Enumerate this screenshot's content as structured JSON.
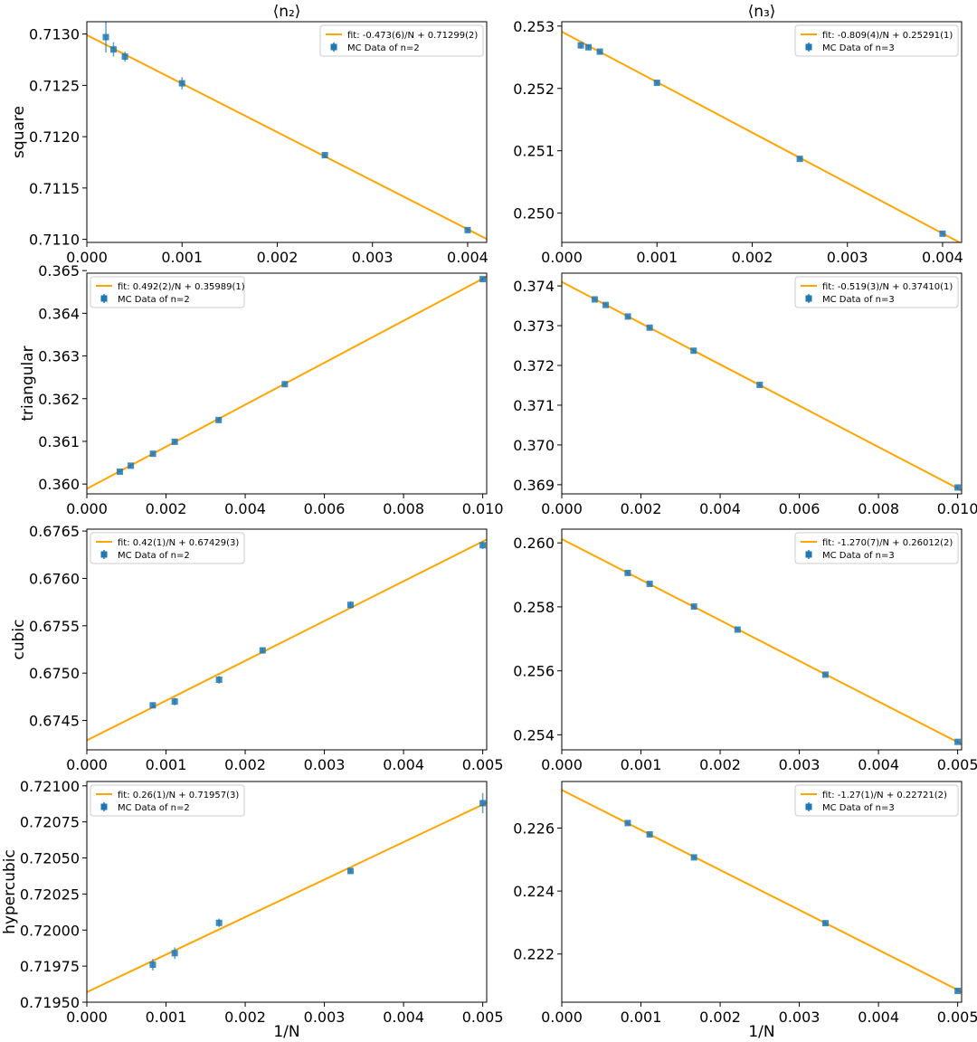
{
  "figure": {
    "column_titles": [
      "⟨n₂⟩",
      "⟨n₃⟩"
    ],
    "row_labels": [
      "square",
      "triangular",
      "cubic",
      "hypercubic"
    ],
    "xlabel": "1/N"
  },
  "chart_data": [
    {
      "type": "scatter",
      "row": "square",
      "column": "⟨n₂⟩",
      "xlim": [
        0,
        0.0042
      ],
      "ylim": [
        0.71097,
        0.71312
      ],
      "xticks": [
        "0.000",
        "0.001",
        "0.002",
        "0.003",
        "0.004"
      ],
      "yticks": [
        "0.7110",
        "0.7115",
        "0.7120",
        "0.7125",
        "0.7130"
      ],
      "legend": [
        "fit: -0.473(6)/N + 0.71299(2)",
        "MC Data of n=2"
      ],
      "legend_position": "upper right",
      "fit": {
        "slope": -0.473,
        "intercept": 0.71299
      },
      "series": [
        {
          "name": "MC Data of n=2",
          "x": [
            0.0002,
            0.00028,
            0.0004,
            0.001,
            0.0025,
            0.004
          ],
          "y": [
            0.71297,
            0.71285,
            0.71278,
            0.71252,
            0.71182,
            0.71109
          ],
          "err": [
            0.00015,
            7e-05,
            5e-05,
            6e-05,
            2e-05,
            2e-05
          ]
        }
      ]
    },
    {
      "type": "scatter",
      "row": "square",
      "column": "⟨n₃⟩",
      "xlim": [
        0,
        0.0042
      ],
      "ylim": [
        0.24953,
        0.25307
      ],
      "xticks": [
        "0.000",
        "0.001",
        "0.002",
        "0.003",
        "0.004"
      ],
      "yticks": [
        "0.250",
        "0.251",
        "0.252",
        "0.253"
      ],
      "legend": [
        "fit: -0.809(4)/N + 0.25291(1)",
        "MC Data of n=3"
      ],
      "legend_position": "upper right",
      "fit": {
        "slope": -0.809,
        "intercept": 0.25291
      },
      "series": [
        {
          "name": "MC Data of n=3",
          "x": [
            0.0002,
            0.00028,
            0.0004,
            0.001,
            0.0025,
            0.004
          ],
          "y": [
            0.25269,
            0.25266,
            0.25259,
            0.25209,
            0.25087,
            0.24967
          ],
          "err": [
            5e-05,
            4e-05,
            3e-05,
            2e-05,
            2e-05,
            2e-05
          ]
        }
      ]
    },
    {
      "type": "scatter",
      "row": "triangular",
      "column": "⟨n₂⟩",
      "xlim": [
        0,
        0.0101
      ],
      "ylim": [
        0.35977,
        0.36494
      ],
      "xticks": [
        "0.000",
        "0.002",
        "0.004",
        "0.006",
        "0.008",
        "0.010"
      ],
      "yticks": [
        "0.360",
        "0.361",
        "0.362",
        "0.363",
        "0.364",
        "0.365"
      ],
      "legend": [
        "fit: 0.492(2)/N + 0.35989(1)",
        "MC Data of n=2"
      ],
      "legend_position": "upper left",
      "fit": {
        "slope": 0.492,
        "intercept": 0.35989
      },
      "series": [
        {
          "name": "MC Data of n=2",
          "x": [
            0.000833,
            0.00111,
            0.00167,
            0.00222,
            0.00333,
            0.005,
            0.01
          ],
          "y": [
            0.36029,
            0.36043,
            0.36071,
            0.36099,
            0.3615,
            0.36234,
            0.3648
          ],
          "err": [
            4e-05,
            4e-05,
            4e-05,
            4e-05,
            4e-05,
            4e-05,
            4e-05
          ]
        }
      ]
    },
    {
      "type": "scatter",
      "row": "triangular",
      "column": "⟨n₃⟩",
      "xlim": [
        0,
        0.0101
      ],
      "ylim": [
        0.36877,
        0.37432
      ],
      "xticks": [
        "0.000",
        "0.002",
        "0.004",
        "0.006",
        "0.008",
        "0.010"
      ],
      "yticks": [
        "0.369",
        "0.370",
        "0.371",
        "0.372",
        "0.373",
        "0.374"
      ],
      "legend": [
        "fit: -0.519(3)/N + 0.37410(1)",
        "MC Data of n=3"
      ],
      "legend_position": "upper right",
      "fit": {
        "slope": -0.519,
        "intercept": 0.3741
      },
      "series": [
        {
          "name": "MC Data of n=3",
          "x": [
            0.000833,
            0.00111,
            0.00167,
            0.00222,
            0.00333,
            0.005,
            0.01
          ],
          "y": [
            0.37366,
            0.37352,
            0.37323,
            0.37295,
            0.37237,
            0.37151,
            0.36893
          ],
          "err": [
            4e-05,
            4e-05,
            4e-05,
            4e-05,
            4e-05,
            4e-05,
            4e-05
          ]
        }
      ]
    },
    {
      "type": "scatter",
      "row": "cubic",
      "column": "⟨n₂⟩",
      "xlim": [
        0,
        0.00505
      ],
      "ylim": [
        0.67419,
        0.67652
      ],
      "xticks": [
        "0.000",
        "0.001",
        "0.002",
        "0.003",
        "0.004",
        "0.005"
      ],
      "yticks": [
        "0.6745",
        "0.6750",
        "0.6755",
        "0.6760",
        "0.6765"
      ],
      "legend": [
        "fit: 0.42(1)/N + 0.67429(3)",
        "MC Data of n=2"
      ],
      "legend_position": "upper left",
      "fit": {
        "slope": 0.42,
        "intercept": 0.67429
      },
      "series": [
        {
          "name": "MC Data of n=2",
          "x": [
            0.000833,
            0.00111,
            0.00167,
            0.00222,
            0.00333,
            0.005
          ],
          "y": [
            0.67466,
            0.6747,
            0.67493,
            0.67524,
            0.67572,
            0.67635
          ],
          "err": [
            3e-05,
            4e-05,
            4e-05,
            3e-05,
            4e-05,
            4e-05
          ]
        }
      ]
    },
    {
      "type": "scatter",
      "row": "cubic",
      "column": "⟨n₃⟩",
      "xlim": [
        0,
        0.00505
      ],
      "ylim": [
        0.25353,
        0.26043
      ],
      "xticks": [
        "0.000",
        "0.001",
        "0.002",
        "0.003",
        "0.004",
        "0.005"
      ],
      "yticks": [
        "0.254",
        "0.256",
        "0.258",
        "0.260"
      ],
      "legend": [
        "fit: -1.270(7)/N + 0.26012(2)",
        "MC Data of n=3"
      ],
      "legend_position": "upper right",
      "fit": {
        "slope": -1.27,
        "intercept": 0.26012
      },
      "series": [
        {
          "name": "MC Data of n=3",
          "x": [
            0.000833,
            0.00111,
            0.00167,
            0.00222,
            0.00333,
            0.005
          ],
          "y": [
            0.25906,
            0.25872,
            0.25801,
            0.25729,
            0.25588,
            0.25378
          ],
          "err": [
            5e-05,
            5e-05,
            5e-05,
            5e-05,
            5e-05,
            5e-05
          ]
        }
      ]
    },
    {
      "type": "scatter",
      "row": "hypercubic",
      "column": "⟨n₂⟩",
      "xlim": [
        0,
        0.00505
      ],
      "ylim": [
        0.7195,
        0.72103
      ],
      "xticks": [
        "0.000",
        "0.001",
        "0.002",
        "0.003",
        "0.004",
        "0.005"
      ],
      "yticks": [
        "0.71950",
        "0.71975",
        "0.72000",
        "0.72025",
        "0.72050",
        "0.72075",
        "0.72100"
      ],
      "legend": [
        "fit: 0.26(1)/N + 0.71957(3)",
        "MC Data of n=2"
      ],
      "legend_position": "upper left",
      "fit": {
        "slope": 0.26,
        "intercept": 0.71957
      },
      "series": [
        {
          "name": "MC Data of n=2",
          "x": [
            0.000833,
            0.00111,
            0.00167,
            0.00333,
            0.005
          ],
          "y": [
            0.71976,
            0.71984,
            0.72005,
            0.72041,
            0.72088
          ],
          "err": [
            4e-05,
            4e-05,
            3e-05,
            2e-05,
            7e-05
          ]
        }
      ]
    },
    {
      "type": "scatter",
      "row": "hypercubic",
      "column": "⟨n₃⟩",
      "xlim": [
        0,
        0.00505
      ],
      "ylim": [
        0.22047,
        0.22748
      ],
      "xticks": [
        "0.000",
        "0.001",
        "0.002",
        "0.003",
        "0.004",
        "0.005"
      ],
      "yticks": [
        "0.222",
        "0.224",
        "0.226"
      ],
      "legend": [
        "fit: -1.27(1)/N + 0.22721(2)",
        "MC Data of n=3"
      ],
      "legend_position": "upper right",
      "fit": {
        "slope": -1.27,
        "intercept": 0.22721
      },
      "series": [
        {
          "name": "MC Data of n=3",
          "x": [
            0.000833,
            0.00111,
            0.00167,
            0.00333,
            0.005
          ],
          "y": [
            0.22616,
            0.2258,
            0.22507,
            0.22298,
            0.22083
          ],
          "err": [
            5e-05,
            5e-05,
            5e-05,
            5e-05,
            5e-05
          ]
        }
      ]
    }
  ],
  "colors": {
    "fit_line": "#ffa500",
    "data_points": "#1f77b4",
    "axes": "#000000",
    "legend_border": "#cccccc"
  }
}
